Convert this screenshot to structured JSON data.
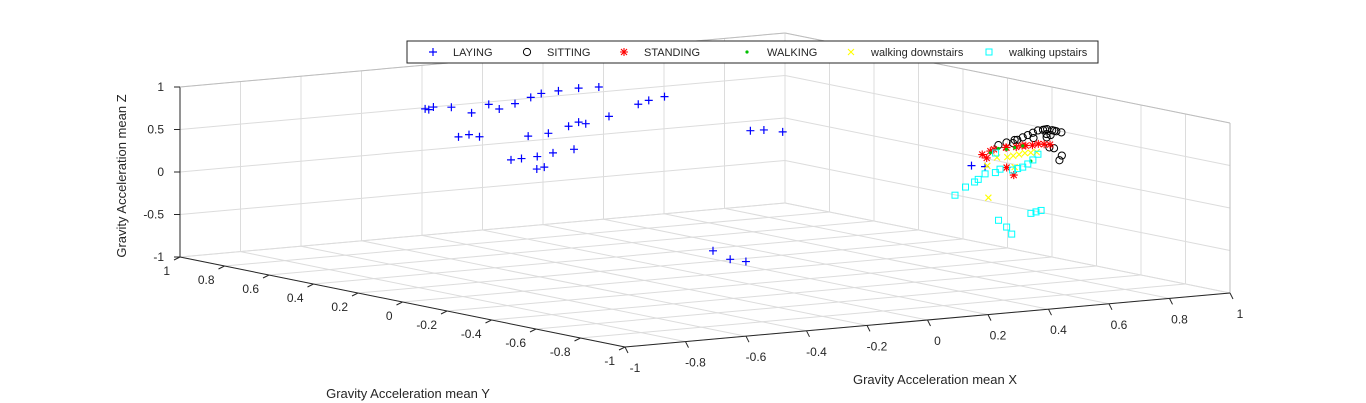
{
  "chart_data": {
    "type": "scatter3d",
    "title": "",
    "xlabel": "Gravity Acceleration mean X",
    "ylabel": "Gravity Acceleration mean Y",
    "zlabel": "Gravity Acceleration mean Z",
    "xlim": [
      -1,
      1
    ],
    "ylim": [
      -1,
      1
    ],
    "zlim": [
      -1,
      1
    ],
    "x_ticks": [
      "-1",
      "-0.8",
      "-0.6",
      "-0.4",
      "-0.2",
      "0",
      "0.2",
      "0.4",
      "0.6",
      "0.8",
      "1"
    ],
    "y_ticks": [
      "1",
      "0.8",
      "0.6",
      "0.4",
      "0.2",
      "0",
      "-0.2",
      "-0.4",
      "-0.6",
      "-0.8",
      "-1"
    ],
    "z_ticks": [
      "1",
      "0.5",
      "0",
      "-0.5",
      "-1"
    ],
    "grid": true,
    "legend_position": "top",
    "series": [
      {
        "name": "LAYING",
        "marker": "plus",
        "color": "#0000ff",
        "points": [
          [
            -0.3,
            0.85,
            0.6
          ],
          [
            -0.28,
            0.84,
            0.62
          ],
          [
            -0.31,
            0.82,
            0.61
          ],
          [
            -0.25,
            0.8,
            0.63
          ],
          [
            -0.22,
            0.75,
            0.58
          ],
          [
            -0.2,
            0.7,
            0.7
          ],
          [
            -0.18,
            0.68,
            0.65
          ],
          [
            -0.15,
            0.65,
            0.72
          ],
          [
            -0.12,
            0.62,
            0.8
          ],
          [
            -0.1,
            0.6,
            0.85
          ],
          [
            -0.08,
            0.55,
            0.9
          ],
          [
            -0.05,
            0.5,
            0.95
          ],
          [
            -0.02,
            0.45,
            0.98
          ],
          [
            -0.3,
            0.7,
            0.35
          ],
          [
            -0.28,
            0.68,
            0.38
          ],
          [
            -0.26,
            0.66,
            0.36
          ],
          [
            -0.18,
            0.55,
            0.4
          ],
          [
            -0.15,
            0.5,
            0.45
          ],
          [
            -0.12,
            0.45,
            0.55
          ],
          [
            -0.1,
            0.4,
            0.6
          ],
          [
            -0.06,
            0.35,
            0.7
          ],
          [
            0.0,
            0.3,
            0.85
          ],
          [
            0.02,
            0.28,
            0.9
          ],
          [
            0.05,
            0.25,
            0.95
          ],
          [
            -0.2,
            0.6,
            0.1
          ],
          [
            -0.18,
            0.58,
            0.12
          ],
          [
            -0.15,
            0.55,
            0.15
          ],
          [
            -0.12,
            0.52,
            0.2
          ],
          [
            -0.08,
            0.48,
            0.25
          ],
          [
            -0.1,
            0.62,
            -0.05
          ],
          [
            -0.09,
            0.6,
            -0.02
          ],
          [
            -0.05,
            0.5,
            0.55
          ],
          [
            0.15,
            0.0,
            0.65
          ],
          [
            0.18,
            -0.02,
            0.66
          ],
          [
            0.22,
            -0.05,
            0.64
          ],
          [
            0.55,
            -0.45,
            0.35
          ],
          [
            0.58,
            -0.47,
            0.34
          ],
          [
            0.1,
            0.1,
            -0.8
          ],
          [
            0.12,
            0.05,
            -0.88
          ],
          [
            0.15,
            0.02,
            -0.9
          ]
        ]
      },
      {
        "name": "SITTING",
        "marker": "circle",
        "color": "#000000",
        "points": [
          [
            0.55,
            -0.8,
            0.75
          ],
          [
            0.58,
            -0.78,
            0.72
          ],
          [
            0.62,
            -0.75,
            0.55
          ],
          [
            0.65,
            -0.72,
            0.58
          ],
          [
            0.7,
            -0.65,
            0.8
          ],
          [
            0.72,
            -0.6,
            0.78
          ],
          [
            0.75,
            -0.55,
            0.75
          ],
          [
            0.78,
            -0.5,
            0.72
          ],
          [
            0.8,
            -0.45,
            0.7
          ],
          [
            0.83,
            -0.4,
            0.66
          ],
          [
            0.86,
            -0.35,
            0.62
          ],
          [
            0.88,
            -0.3,
            0.58
          ],
          [
            0.9,
            -0.25,
            0.52
          ],
          [
            0.92,
            -0.2,
            0.46
          ],
          [
            0.94,
            -0.15,
            0.4
          ],
          [
            0.95,
            -0.1,
            0.34
          ],
          [
            0.96,
            -0.05,
            0.28
          ],
          [
            0.97,
            0.0,
            0.22
          ],
          [
            0.85,
            -0.38,
            0.55
          ],
          [
            0.88,
            -0.28,
            0.48
          ],
          [
            0.82,
            -0.42,
            0.62
          ],
          [
            0.9,
            -0.18,
            0.4
          ],
          [
            0.76,
            -0.52,
            0.68
          ],
          [
            0.93,
            -0.12,
            0.32
          ]
        ]
      },
      {
        "name": "STANDING",
        "marker": "asterisk",
        "color": "#ff0000",
        "points": [
          [
            0.92,
            -0.3,
            0.4
          ],
          [
            0.94,
            -0.22,
            0.36
          ],
          [
            0.95,
            -0.18,
            0.32
          ],
          [
            0.96,
            -0.12,
            0.28
          ],
          [
            0.97,
            -0.08,
            0.24
          ],
          [
            0.98,
            -0.02,
            0.2
          ],
          [
            0.93,
            -0.26,
            0.38
          ],
          [
            0.95,
            -0.15,
            0.3
          ],
          [
            0.96,
            -0.05,
            0.22
          ],
          [
            0.98,
            0.05,
            0.12
          ],
          [
            0.99,
            0.1,
            0.05
          ],
          [
            0.85,
            -0.2,
            0.1
          ],
          [
            0.8,
            -0.3,
            0.08
          ],
          [
            0.97,
            0.02,
            0.16
          ],
          [
            0.99,
            0.08,
            0.02
          ]
        ]
      },
      {
        "name": "WALKING",
        "marker": "dot",
        "color": "#00c000",
        "points": [
          [
            0.95,
            -0.1,
            0.25
          ],
          [
            0.96,
            -0.05,
            0.2
          ],
          [
            0.97,
            0.0,
            0.18
          ],
          [
            0.94,
            -0.15,
            0.3
          ],
          [
            0.98,
            0.05,
            0.1
          ],
          [
            0.93,
            -0.2,
            0.15
          ]
        ]
      },
      {
        "name": "walking downstairs",
        "marker": "x",
        "color": "#ffff00",
        "points": [
          [
            0.93,
            -0.2,
            0.25
          ],
          [
            0.94,
            -0.16,
            0.22
          ],
          [
            0.95,
            -0.12,
            0.18
          ],
          [
            0.96,
            -0.08,
            0.14
          ],
          [
            0.97,
            -0.04,
            0.1
          ],
          [
            0.98,
            0.02,
            0.06
          ],
          [
            0.92,
            -0.24,
            0.28
          ],
          [
            0.95,
            -0.1,
            0.02
          ],
          [
            0.97,
            0.05,
            -0.05
          ],
          [
            0.9,
            -0.05,
            -0.35
          ]
        ]
      },
      {
        "name": "walking upstairs",
        "marker": "square",
        "color": "#00ffff",
        "points": [
          [
            0.88,
            -0.3,
            0.3
          ],
          [
            0.9,
            -0.25,
            0.2
          ],
          [
            0.92,
            -0.2,
            0.12
          ],
          [
            0.94,
            -0.15,
            0.05
          ],
          [
            0.96,
            -0.1,
            0.0
          ],
          [
            0.98,
            -0.05,
            -0.05
          ],
          [
            0.99,
            0.02,
            -0.08
          ],
          [
            0.96,
            0.0,
            -0.1
          ],
          [
            0.94,
            0.05,
            -0.2
          ],
          [
            0.92,
            0.08,
            -0.3
          ],
          [
            0.9,
            0.1,
            -0.4
          ],
          [
            0.8,
            -0.4,
            -0.3
          ],
          [
            0.78,
            -0.45,
            -0.25
          ],
          [
            0.82,
            -0.35,
            -0.35
          ],
          [
            0.85,
            -0.2,
            -0.6
          ],
          [
            0.83,
            -0.25,
            -0.65
          ],
          [
            0.86,
            -0.15,
            -0.55
          ],
          [
            0.97,
            0.06,
            -0.15
          ],
          [
            0.95,
            0.08,
            -0.25
          ],
          [
            0.99,
            0.04,
            0.1
          ]
        ]
      }
    ]
  }
}
